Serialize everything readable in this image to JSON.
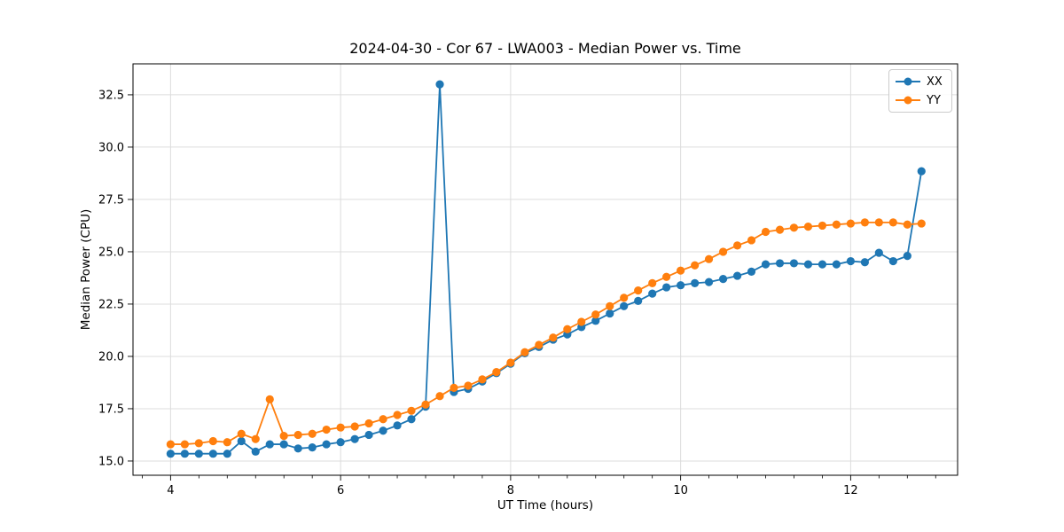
{
  "colors": {
    "background": "#ffffff",
    "grid": "#dcdcdc",
    "spine": "#000000",
    "text": "#000000",
    "legend_border": "#cccccc",
    "series_blue": "#1f77b4",
    "series_orange": "#ff7f0e"
  },
  "chart_data": {
    "type": "line",
    "title": "2024-04-30 - Cor 67 - LWA003 - Median Power vs. Time",
    "xlabel": "UT Time (hours)",
    "ylabel": "Median Power (CPU)",
    "xlim": [
      3.558,
      13.258
    ],
    "ylim": [
      14.32,
      33.98
    ],
    "x_major_ticks": [
      4,
      6,
      8,
      10,
      12
    ],
    "x_minor_ticks_per_major_interval": 6,
    "y_major_ticks": [
      15.0,
      17.5,
      20.0,
      22.5,
      25.0,
      27.5,
      30.0,
      32.5
    ],
    "grid": "major-both-axes",
    "legend_position": "upper right",
    "marker": "circle",
    "x": [
      4.0,
      4.167,
      4.333,
      4.5,
      4.667,
      4.833,
      5.0,
      5.167,
      5.333,
      5.5,
      5.667,
      5.833,
      6.0,
      6.167,
      6.333,
      6.5,
      6.667,
      6.833,
      7.0,
      7.167,
      7.333,
      7.5,
      7.667,
      7.833,
      8.0,
      8.167,
      8.333,
      8.5,
      8.667,
      8.833,
      9.0,
      9.167,
      9.333,
      9.5,
      9.667,
      9.833,
      10.0,
      10.167,
      10.333,
      10.5,
      10.667,
      10.833,
      11.0,
      11.167,
      11.333,
      11.5,
      11.667,
      11.833,
      12.0,
      12.167,
      12.333,
      12.5,
      12.667,
      12.833
    ],
    "series": [
      {
        "name": "XX",
        "color": "#1f77b4",
        "values": [
          15.35,
          15.35,
          15.35,
          15.35,
          15.35,
          15.95,
          15.45,
          15.8,
          15.8,
          15.6,
          15.65,
          15.8,
          15.9,
          16.05,
          16.25,
          16.45,
          16.7,
          17.0,
          17.6,
          33.0,
          18.3,
          18.45,
          18.8,
          19.2,
          19.65,
          20.15,
          20.45,
          20.8,
          21.05,
          21.4,
          21.7,
          22.05,
          22.4,
          22.65,
          23.0,
          23.3,
          23.4,
          23.5,
          23.55,
          23.7,
          23.85,
          24.05,
          24.4,
          24.45,
          24.45,
          24.4,
          24.4,
          24.4,
          24.55,
          24.5,
          24.95,
          24.55,
          24.8,
          28.85
        ]
      },
      {
        "name": "YY",
        "color": "#ff7f0e",
        "values": [
          15.8,
          15.8,
          15.85,
          15.95,
          15.9,
          16.3,
          16.05,
          17.95,
          16.2,
          16.25,
          16.3,
          16.5,
          16.6,
          16.65,
          16.8,
          17.0,
          17.2,
          17.4,
          17.7,
          18.1,
          18.5,
          18.6,
          18.9,
          19.25,
          19.7,
          20.2,
          20.55,
          20.9,
          21.3,
          21.65,
          22.0,
          22.4,
          22.8,
          23.15,
          23.5,
          23.8,
          24.1,
          24.35,
          24.65,
          25.0,
          25.3,
          25.55,
          25.95,
          26.05,
          26.15,
          26.2,
          26.25,
          26.3,
          26.35,
          26.4,
          26.4,
          26.4,
          26.3,
          26.35
        ]
      }
    ]
  }
}
